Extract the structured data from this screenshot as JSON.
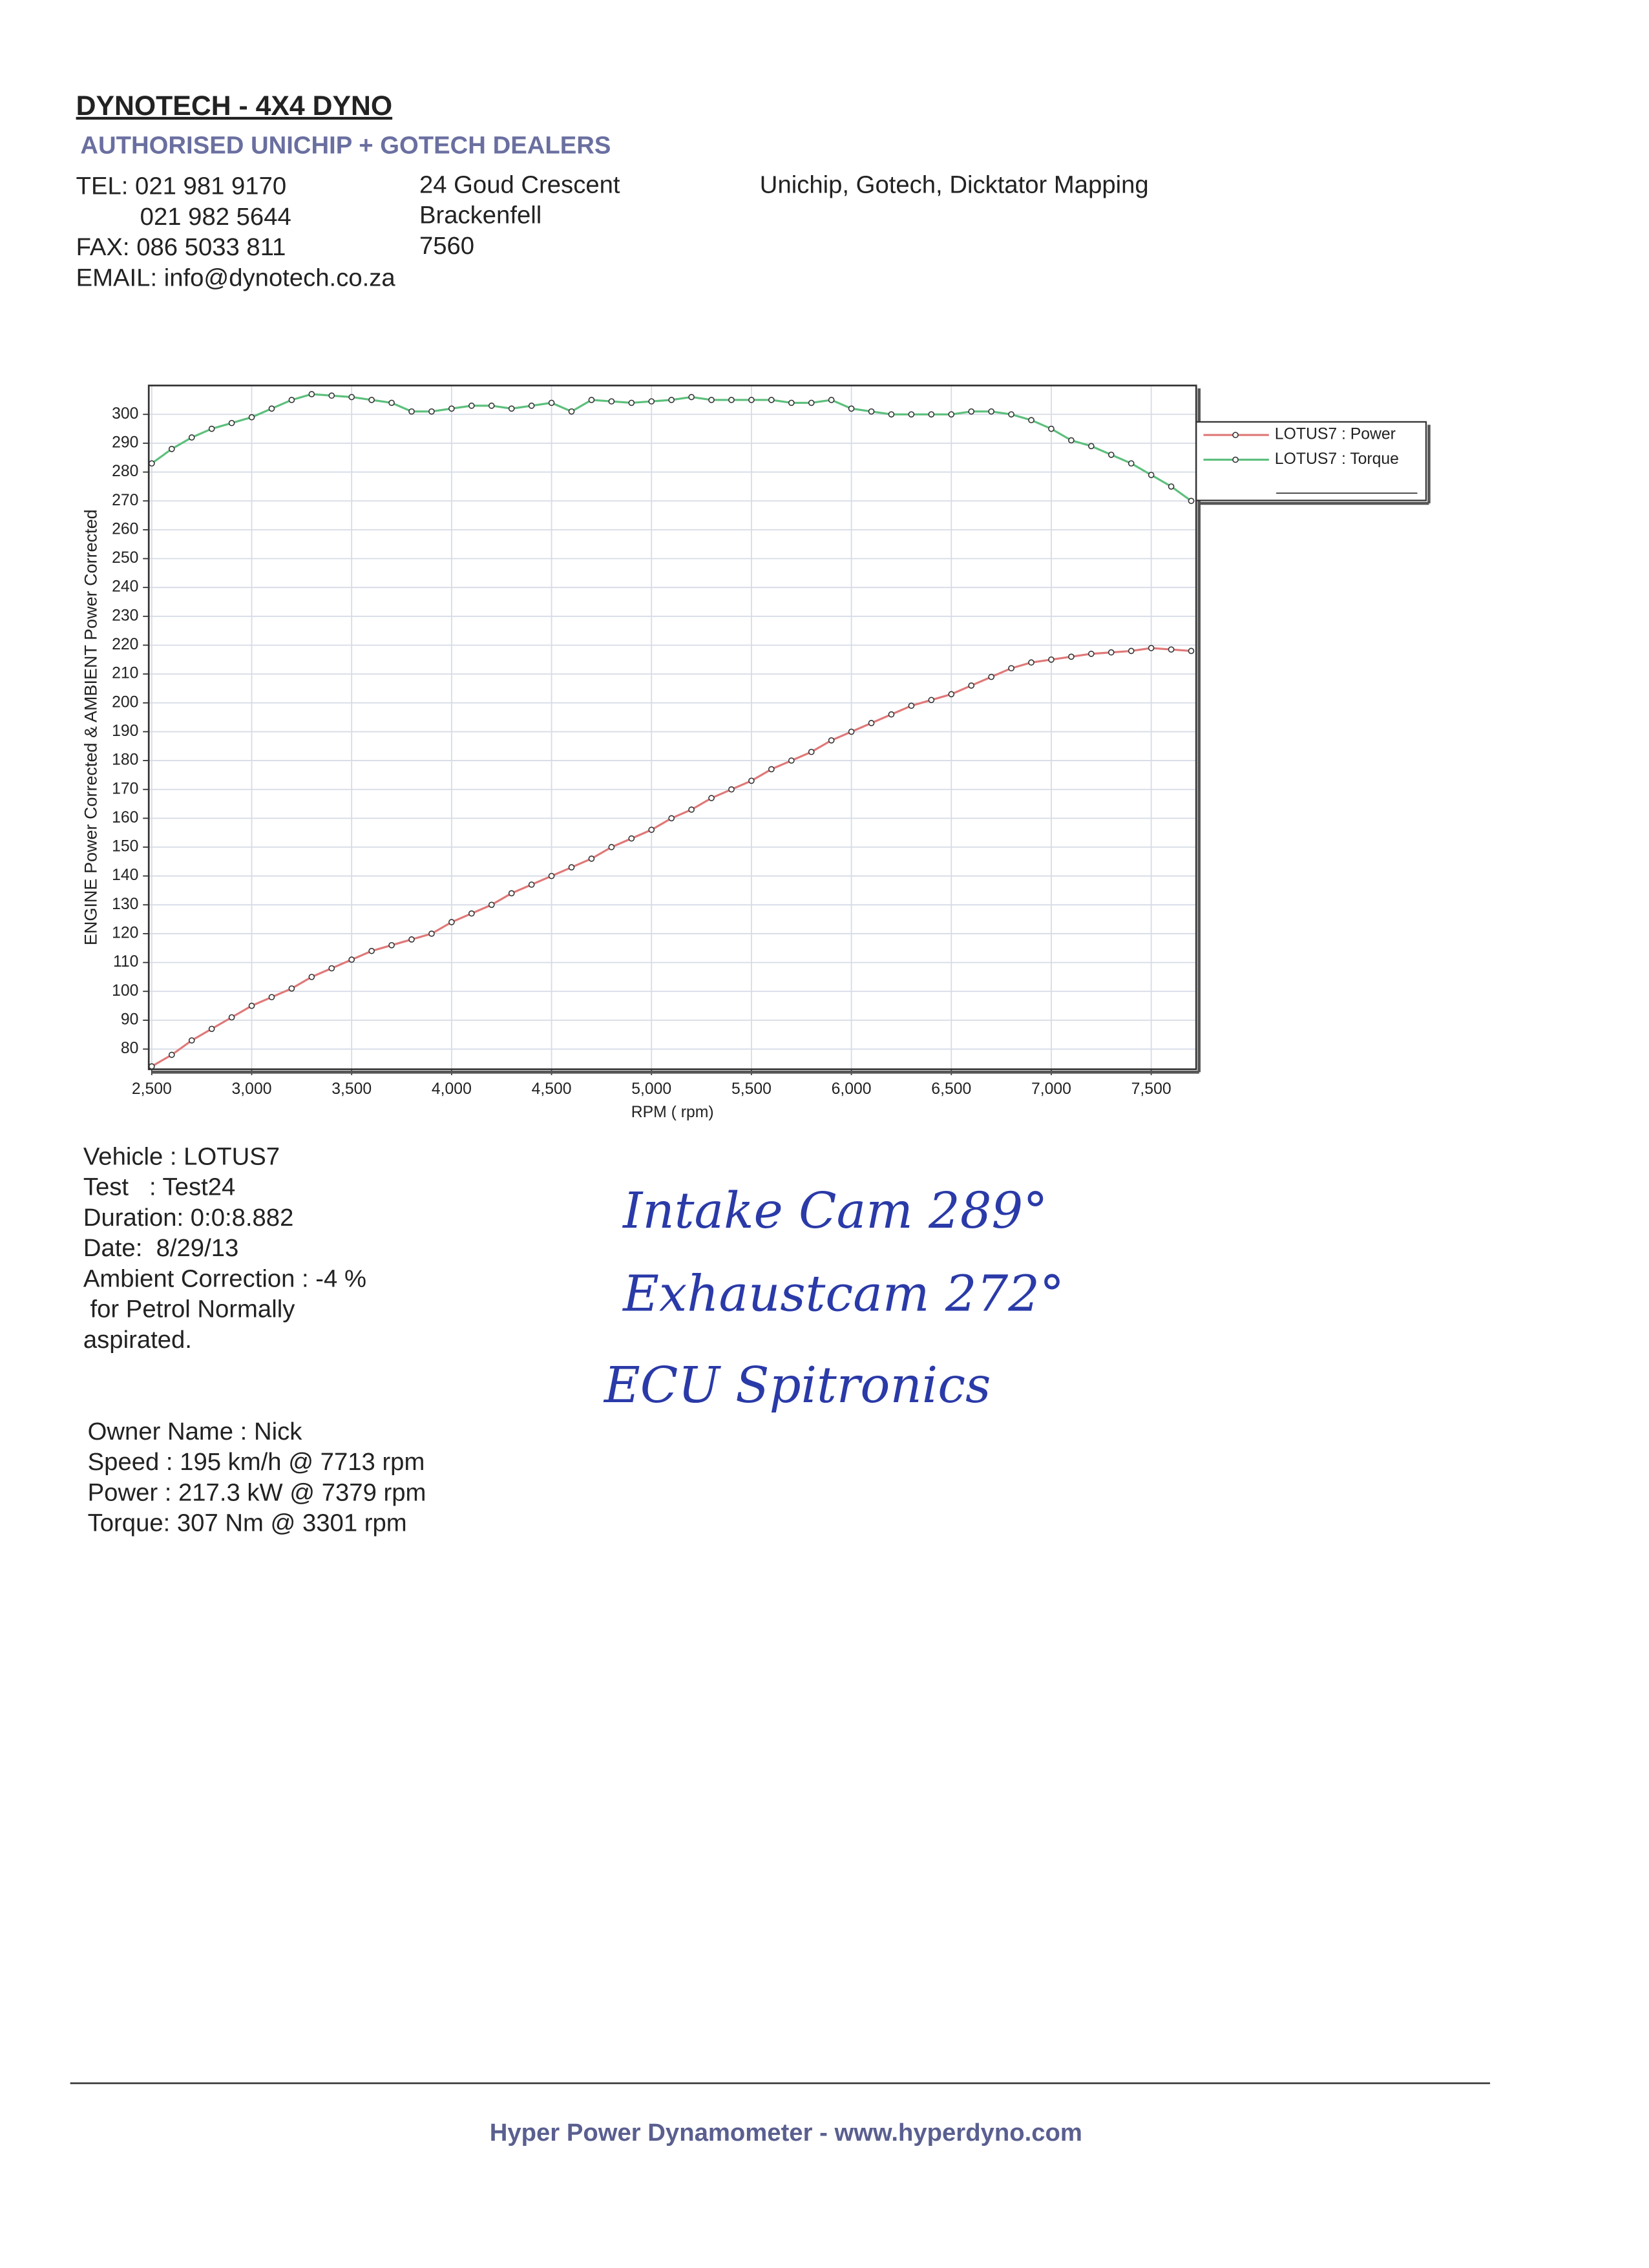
{
  "header": {
    "title": "DYNOTECH - 4X4 DYNO",
    "subtitle": "AUTHORISED UNICHIP + GOTECH DEALERS",
    "contact": [
      "TEL: 021 981 9170",
      "021 982 5644",
      "FAX: 086 5033 811",
      "EMAIL: info@dynotech.co.za"
    ],
    "address": [
      "24 Goud Crescent",
      "Brackenfell",
      "7560"
    ],
    "services": "Unichip, Gotech, Dicktator Mapping"
  },
  "chart_data": {
    "type": "line",
    "xlabel": "RPM ( rpm)",
    "ylabel": "ENGINE Power Corrected & AMBIENT Power Corrected",
    "x": [
      2500,
      2600,
      2700,
      2800,
      2900,
      3000,
      3100,
      3200,
      3300,
      3400,
      3500,
      3600,
      3700,
      3800,
      3900,
      4000,
      4100,
      4200,
      4300,
      4400,
      4500,
      4600,
      4700,
      4800,
      4900,
      5000,
      5100,
      5200,
      5300,
      5400,
      5500,
      5600,
      5700,
      5800,
      5900,
      6000,
      6100,
      6200,
      6300,
      6400,
      6500,
      6600,
      6700,
      6800,
      6900,
      7000,
      7100,
      7200,
      7300,
      7400,
      7500,
      7600,
      7700
    ],
    "series": [
      {
        "name": "LOTUS7 : Power",
        "color": "#e07878",
        "values": [
          74,
          78,
          83,
          87,
          91,
          95,
          98,
          101,
          105,
          108,
          111,
          114,
          116,
          118,
          120,
          124,
          127,
          130,
          134,
          137,
          140,
          143,
          146,
          150,
          153,
          156,
          160,
          163,
          167,
          170,
          173,
          177,
          180,
          183,
          187,
          190,
          193,
          196,
          199,
          201,
          203,
          206,
          209,
          212,
          214,
          215,
          216,
          217,
          217.5,
          218,
          219,
          218.5,
          218
        ]
      },
      {
        "name": "LOTUS7 : Torque",
        "color": "#5cbf7c",
        "values": [
          283,
          288,
          292,
          295,
          297,
          299,
          302,
          305,
          307,
          306.5,
          306,
          305,
          304,
          301,
          301,
          302,
          303,
          303,
          302,
          303,
          304,
          301,
          305,
          304.5,
          304,
          304.5,
          305,
          306,
          305,
          305,
          305,
          305,
          304,
          304,
          305,
          302,
          301,
          300,
          300,
          300,
          300,
          301,
          301,
          300,
          298,
          295,
          291,
          289,
          286,
          283,
          279,
          275,
          270
        ]
      }
    ],
    "xlim": [
      2485,
      7725
    ],
    "ylim": [
      73,
      310
    ],
    "xticks": [
      {
        "value": 2500,
        "label": "2,500"
      },
      {
        "value": 3000,
        "label": "3,000"
      },
      {
        "value": 3500,
        "label": "3,500"
      },
      {
        "value": 4000,
        "label": "4,000"
      },
      {
        "value": 4500,
        "label": "4,500"
      },
      {
        "value": 5000,
        "label": "5,000"
      },
      {
        "value": 5500,
        "label": "5,500"
      },
      {
        "value": 6000,
        "label": "6,000"
      },
      {
        "value": 6500,
        "label": "6,500"
      },
      {
        "value": 7000,
        "label": "7,000"
      },
      {
        "value": 7500,
        "label": "7,500"
      }
    ],
    "yticks": [
      80,
      90,
      100,
      110,
      120,
      130,
      140,
      150,
      160,
      170,
      180,
      190,
      200,
      210,
      220,
      230,
      240,
      250,
      260,
      270,
      280,
      290,
      300
    ],
    "grid": true,
    "legend": "outside-right"
  },
  "test_info": [
    "Vehicle : LOTUS7",
    "Test   : Test24",
    "Duration: 0:0:8.882",
    "Date:  8/29/13",
    "Ambient Correction : -4 %",
    " for Petrol Normally",
    "aspirated."
  ],
  "owner_info": [
    "Owner Name : Nick",
    "Speed : 195 km/h @ 7713 rpm",
    "Power : 217.3 kW @ 7379 rpm",
    "Torque: 307 Nm @ 3301 rpm"
  ],
  "notes": [
    "Intake Cam 289°",
    "Exhaustcam 272°",
    "ECU Spitronics"
  ],
  "footer": "Hyper Power Dynamometer  -  www.hyperdyno.com"
}
